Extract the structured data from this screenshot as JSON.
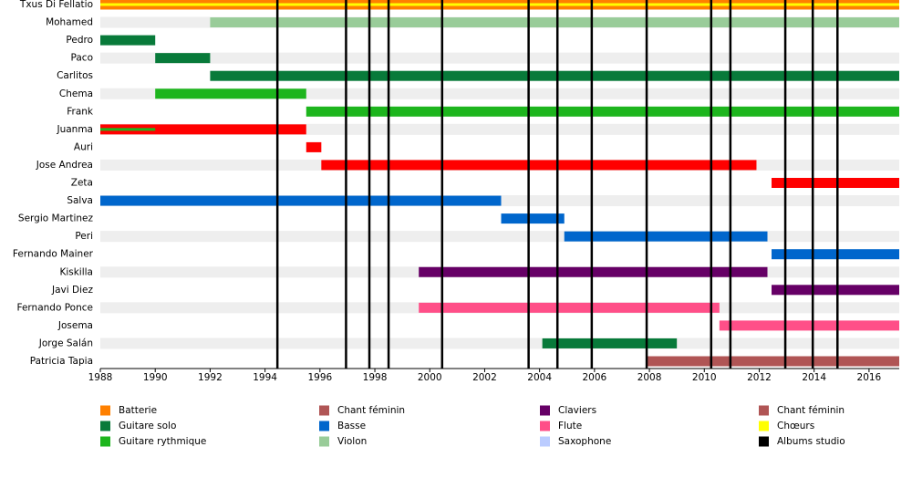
{
  "chart_data": {
    "type": "timeline",
    "xlim": [
      1988,
      2017.1
    ],
    "xticks": [
      1988,
      1990,
      1992,
      1994,
      1996,
      1998,
      2000,
      2002,
      2004,
      2006,
      2008,
      2010,
      2012,
      2014,
      2016
    ],
    "members": [
      {
        "name": "Txus Di Fellatio",
        "bars": [
          {
            "start": 1988,
            "end": 2017.1,
            "color": "#ff8000"
          },
          {
            "start": 1988,
            "end": 2017.1,
            "color": "#ffff00",
            "style": "stripe"
          }
        ]
      },
      {
        "name": "Mohamed",
        "bars": [
          {
            "start": 1992,
            "end": 2017.1,
            "color": "#99cc99"
          }
        ]
      },
      {
        "name": "Pedro",
        "bars": [
          {
            "start": 1988,
            "end": 1990,
            "color": "#087a3a"
          }
        ]
      },
      {
        "name": "Paco",
        "bars": [
          {
            "start": 1990,
            "end": 1992,
            "color": "#087a3a"
          }
        ]
      },
      {
        "name": "Carlitos",
        "bars": [
          {
            "start": 1992,
            "end": 2017.1,
            "color": "#087a3a"
          }
        ]
      },
      {
        "name": "Chema",
        "bars": [
          {
            "start": 1990,
            "end": 1995.5,
            "color": "#1db51d"
          }
        ]
      },
      {
        "name": "Frank",
        "bars": [
          {
            "start": 1995.5,
            "end": 2017.1,
            "color": "#1db51d"
          }
        ]
      },
      {
        "name": "Juanma",
        "bars": [
          {
            "start": 1988,
            "end": 1995.5,
            "color": "#ff0000"
          },
          {
            "start": 1988,
            "end": 1990,
            "color": "#1db51d",
            "style": "stripe"
          }
        ]
      },
      {
        "name": "Auri",
        "bars": [
          {
            "start": 1995.5,
            "end": 1996.05,
            "color": "#ff0000"
          }
        ]
      },
      {
        "name": "Jose Andrea",
        "bars": [
          {
            "start": 1996.05,
            "end": 2011.9,
            "color": "#ff0000"
          }
        ]
      },
      {
        "name": "Zeta",
        "bars": [
          {
            "start": 2012.45,
            "end": 2017.1,
            "color": "#ff0000"
          }
        ]
      },
      {
        "name": "Salva",
        "bars": [
          {
            "start": 1988,
            "end": 2002.6,
            "color": "#0066cc"
          }
        ]
      },
      {
        "name": "Sergio Martinez",
        "bars": [
          {
            "start": 2002.6,
            "end": 2004.9,
            "color": "#0066cc"
          }
        ]
      },
      {
        "name": "Peri",
        "bars": [
          {
            "start": 2004.9,
            "end": 2012.3,
            "color": "#0066cc"
          }
        ]
      },
      {
        "name": "Fernando Mainer",
        "bars": [
          {
            "start": 2012.45,
            "end": 2017.1,
            "color": "#0066cc"
          }
        ]
      },
      {
        "name": "Kiskilla",
        "bars": [
          {
            "start": 1999.6,
            "end": 2012.3,
            "color": "#660066"
          }
        ]
      },
      {
        "name": "Javi Diez",
        "bars": [
          {
            "start": 2012.45,
            "end": 2017.1,
            "color": "#660066"
          }
        ]
      },
      {
        "name": "Fernando Ponce",
        "bars": [
          {
            "start": 1999.6,
            "end": 2010.55,
            "color": "#ff4f88"
          }
        ]
      },
      {
        "name": "Josema",
        "bars": [
          {
            "start": 2010.55,
            "end": 2017.1,
            "color": "#ff4f88"
          }
        ]
      },
      {
        "name": "Jorge Salán",
        "bars": [
          {
            "start": 2004.1,
            "end": 2009,
            "color": "#087a3a"
          }
        ]
      },
      {
        "name": "Patricia Tapia",
        "bars": [
          {
            "start": 2007.9,
            "end": 2017.1,
            "color": "#b05555"
          }
        ]
      }
    ],
    "albums": [
      1994.45,
      1996.95,
      1997.8,
      1998.5,
      2000.45,
      2003.6,
      2004.65,
      2005.9,
      2007.9,
      2010.25,
      2010.95,
      2012.95,
      2013.95,
      2014.85
    ],
    "albums_color": "#000000",
    "legend": [
      {
        "name": "Batterie",
        "color": "#ff8000"
      },
      {
        "name": "Guitare solo",
        "color": "#087a3a"
      },
      {
        "name": "Guitare rythmique",
        "color": "#1db51d"
      },
      {
        "name": "Chant féminin",
        "color": "#b05555"
      },
      {
        "name": "Basse",
        "color": "#0066cc"
      },
      {
        "name": "Violon",
        "color": "#99cc99"
      },
      {
        "name": "Claviers",
        "color": "#660066"
      },
      {
        "name": "Flute",
        "color": "#ff4f88"
      },
      {
        "name": "Saxophone",
        "color": "#bbccff"
      },
      {
        "name": "Chant féminin",
        "color": "#b05555"
      },
      {
        "name": "Chœurs",
        "color": "#ffff00"
      },
      {
        "name": "Albums studio",
        "color": "#000000"
      }
    ]
  }
}
